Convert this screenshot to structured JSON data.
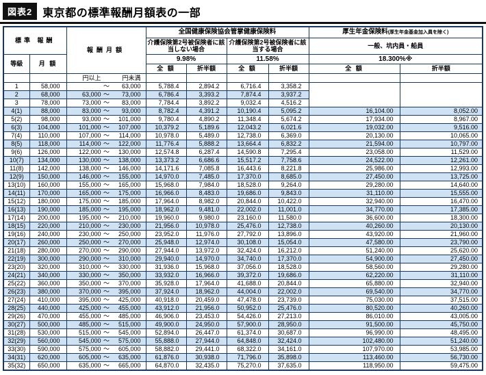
{
  "figure": {
    "badge": "図表2",
    "title": "東京都の標準報酬月額表の一部"
  },
  "colors": {
    "row_shade": "#cfe2f3",
    "border": "#17375e",
    "badge_bg": "#111111"
  },
  "table": {
    "headers": {
      "standard_remuneration": "標準 報酬",
      "grade": "等級",
      "monthly_amount": "月 額",
      "remuneration_monthly": "報酬月額",
      "health_group": "全国健康保険協会管掌健康保険料",
      "care_excluded": "介護保険第2号被保険者に該当しない場合",
      "care_excluded_rate": "9.98%",
      "care_included": "介護保険第2号被保険者に該当する場合",
      "care_included_rate": "11.58%",
      "pension_group": "厚生年金保険料",
      "pension_group_note": "(厚生年金基金加入員を除く)",
      "pension_sub": "一般、坑内員・船員",
      "pension_rate": "18.300%※",
      "full": "全 額",
      "half": "折半額",
      "yen_min": "円以上",
      "yen_max": "円未満",
      "tilde": "～"
    },
    "row_fields": [
      "grade",
      "monthly_amount",
      "range_low",
      "range_high",
      "health_full",
      "health_half",
      "care_full",
      "care_half",
      "pension_full",
      "pension_half"
    ],
    "rows": [
      [
        "1",
        "58,000",
        "",
        "63,000",
        "5,788.4",
        "2,894.2",
        "6,716.4",
        "3,358.2",
        "",
        ""
      ],
      [
        "2",
        "68,000",
        "63,000",
        "73,000",
        "6,786.4",
        "3,393.2",
        "7,874.4",
        "3,937.2",
        "",
        ""
      ],
      [
        "3",
        "78,000",
        "73,000",
        "83,000",
        "7,784.4",
        "3,892.2",
        "9,032.4",
        "4,516.2",
        "",
        ""
      ],
      [
        "4(1)",
        "88,000",
        "83,000",
        "93,000",
        "8,782.4",
        "4,391.2",
        "10,190.4",
        "5,095.2",
        "16,104.00",
        "8,052.00"
      ],
      [
        "5(2)",
        "98,000",
        "93,000",
        "101,000",
        "9,780.4",
        "4,890.2",
        "11,348.4",
        "5,674.2",
        "17,934.00",
        "8,967.00"
      ],
      [
        "6(3)",
        "104,000",
        "101,000",
        "107,000",
        "10,379.2",
        "5,189.6",
        "12,043.2",
        "6,021.6",
        "19,032.00",
        "9,516.00"
      ],
      [
        "7(4)",
        "110,000",
        "107,000",
        "114,000",
        "10,978.0",
        "5,489.0",
        "12,738.0",
        "6,369.0",
        "20,130.00",
        "10,065.00"
      ],
      [
        "8(5)",
        "118,000",
        "114,000",
        "122,000",
        "11,776.4",
        "5,888.2",
        "13,664.4",
        "6,832.2",
        "21,594.00",
        "10,797.00"
      ],
      [
        "9(6)",
        "126,000",
        "122,000",
        "130,000",
        "12,574.8",
        "6,287.4",
        "14,590.8",
        "7,295.4",
        "23,058.00",
        "11,529.00"
      ],
      [
        "10(7)",
        "134,000",
        "130,000",
        "138,000",
        "13,373.2",
        "6,686.6",
        "15,517.2",
        "7,758.6",
        "24,522.00",
        "12,261.00"
      ],
      [
        "11(8)",
        "142,000",
        "138,000",
        "146,000",
        "14,171.6",
        "7,085.8",
        "16,443.6",
        "8,221.8",
        "25,986.00",
        "12,993.00"
      ],
      [
        "12(9)",
        "150,000",
        "146,000",
        "155,000",
        "14,970.0",
        "7,485.0",
        "17,370.0",
        "8,685.0",
        "27,450.00",
        "13,725.00"
      ],
      [
        "13(10)",
        "160,000",
        "155,000",
        "165,000",
        "15,968.0",
        "7,984.0",
        "18,528.0",
        "9,264.0",
        "29,280.00",
        "14,640.00"
      ],
      [
        "14(11)",
        "170,000",
        "165,000",
        "175,000",
        "16,966.0",
        "8,483.0",
        "19,686.0",
        "9,843.0",
        "31,110.00",
        "15,555.00"
      ],
      [
        "15(12)",
        "180,000",
        "175,000",
        "185,000",
        "17,964.0",
        "8,982.0",
        "20,844.0",
        "10,422.0",
        "32,940.00",
        "16,470.00"
      ],
      [
        "16(13)",
        "190,000",
        "185,000",
        "195,000",
        "18,962.0",
        "9,481.0",
        "22,002.0",
        "11,001.0",
        "34,770.00",
        "17,385.00"
      ],
      [
        "17(14)",
        "200,000",
        "195,000",
        "210,000",
        "19,960.0",
        "9,980.0",
        "23,160.0",
        "11,580.0",
        "36,600.00",
        "18,300.00"
      ],
      [
        "18(15)",
        "220,000",
        "210,000",
        "230,000",
        "21,956.0",
        "10,978.0",
        "25,476.0",
        "12,738.0",
        "40,260.00",
        "20,130.00"
      ],
      [
        "19(16)",
        "240,000",
        "230,000",
        "250,000",
        "23,952.0",
        "11,976.0",
        "27,792.0",
        "13,896.0",
        "43,920.00",
        "21,960.00"
      ],
      [
        "20(17)",
        "260,000",
        "250,000",
        "270,000",
        "25,948.0",
        "12,974.0",
        "30,108.0",
        "15,054.0",
        "47,580.00",
        "23,790.00"
      ],
      [
        "21(18)",
        "280,000",
        "270,000",
        "290,000",
        "27,944.0",
        "13,972.0",
        "32,424.0",
        "16,212.0",
        "51,240.00",
        "25,620.00"
      ],
      [
        "22(19)",
        "300,000",
        "290,000",
        "310,000",
        "29,940.0",
        "14,970.0",
        "34,740.0",
        "17,370.0",
        "54,900.00",
        "27,450.00"
      ],
      [
        "23(20)",
        "320,000",
        "310,000",
        "330,000",
        "31,936.0",
        "15,968.0",
        "37,056.0",
        "18,528.0",
        "58,560.00",
        "29,280.00"
      ],
      [
        "24(21)",
        "340,000",
        "330,000",
        "350,000",
        "33,932.0",
        "16,966.0",
        "39,372.0",
        "19,686.0",
        "62,220.00",
        "31,110.00"
      ],
      [
        "25(22)",
        "360,000",
        "350,000",
        "370,000",
        "35,928.0",
        "17,964.0",
        "41,688.0",
        "20,844.0",
        "65,880.00",
        "32,940.00"
      ],
      [
        "26(23)",
        "380,000",
        "370,000",
        "395,000",
        "37,924.0",
        "18,962.0",
        "44,004.0",
        "22,002.0",
        "69,540.00",
        "34,770.00"
      ],
      [
        "27(24)",
        "410,000",
        "395,000",
        "425,000",
        "40,918.0",
        "20,459.0",
        "47,478.0",
        "23,739.0",
        "75,030.00",
        "37,515.00"
      ],
      [
        "28(25)",
        "440,000",
        "425,000",
        "455,000",
        "43,912.0",
        "21,956.0",
        "50,952.0",
        "25,476.0",
        "80,520.00",
        "40,260.00"
      ],
      [
        "29(26)",
        "470,000",
        "455,000",
        "485,000",
        "46,906.0",
        "23,453.0",
        "54,426.0",
        "27,213.0",
        "86,010.00",
        "43,005.00"
      ],
      [
        "30(27)",
        "500,000",
        "485,000",
        "515,000",
        "49,900.0",
        "24,950.0",
        "57,900.0",
        "28,950.0",
        "91,500.00",
        "45,750.00"
      ],
      [
        "31(28)",
        "530,000",
        "515,000",
        "545,000",
        "52,894.0",
        "26,447.0",
        "61,374.0",
        "30,687.0",
        "96,990.00",
        "48,495.00"
      ],
      [
        "32(29)",
        "560,000",
        "545,000",
        "575,000",
        "55,888.0",
        "27,944.0",
        "64,848.0",
        "32,424.0",
        "102,480.00",
        "51,240.00"
      ],
      [
        "33(30)",
        "590,000",
        "575,000",
        "605,000",
        "58,882.0",
        "29,441.0",
        "68,322.0",
        "34,161.0",
        "107,970.00",
        "53,985.00"
      ],
      [
        "34(31)",
        "620,000",
        "605,000",
        "635,000",
        "61,876.0",
        "30,938.0",
        "71,796.0",
        "35,898.0",
        "113,460.00",
        "56,730.00"
      ],
      [
        "35(32)",
        "650,000",
        "635,000",
        "665,000",
        "64,870.0",
        "32,435.0",
        "75,270.0",
        "37,635.0",
        "118,950.00",
        "59,475.00"
      ]
    ]
  }
}
